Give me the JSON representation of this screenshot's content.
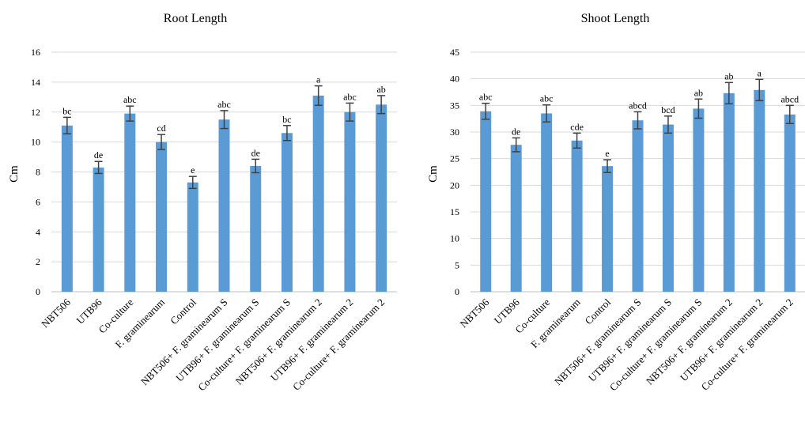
{
  "chart_data": [
    {
      "type": "bar",
      "title": "Root Length",
      "ylabel": "Cm",
      "xlabel": "",
      "ylim": [
        0,
        16
      ],
      "yticks": [
        0,
        2,
        4,
        6,
        8,
        10,
        12,
        14,
        16
      ],
      "grid": true,
      "categories": [
        "NBT506",
        "UTB96",
        "Co-culture",
        "F. graminearum",
        "Control",
        "NBT506+ F. graminearum S",
        "UTB96+ F. graminearum S",
        "Co-culture+ F. graminearum S",
        "NBT506+ F. graminearum 2",
        "UTB96+ F. graminearum 2",
        "Co-culture+ F. graminearum 2"
      ],
      "values": [
        11.1,
        8.3,
        11.9,
        10.0,
        7.3,
        11.5,
        8.4,
        10.6,
        13.1,
        12.0,
        12.5
      ],
      "errors": [
        0.55,
        0.4,
        0.5,
        0.5,
        0.4,
        0.6,
        0.45,
        0.5,
        0.65,
        0.6,
        0.6
      ],
      "significance": [
        "bc",
        "de",
        "abc",
        "cd",
        "e",
        "abc",
        "de",
        "bc",
        "a",
        "abc",
        "ab"
      ],
      "color": "#5b9bd5"
    },
    {
      "type": "bar",
      "title": "Shoot Length",
      "ylabel": "Cm",
      "xlabel": "",
      "ylim": [
        0,
        45
      ],
      "yticks": [
        0,
        5,
        10,
        15,
        20,
        25,
        30,
        35,
        40,
        45
      ],
      "grid": true,
      "categories": [
        "NBT506",
        "UTB96",
        "Co-culture",
        "F. graminearum",
        "Control",
        "NBT506+ F. graminearum S",
        "UTB96+ F. graminearum S",
        "Co-culture+ F. graminearum S",
        "NBT506+ F. graminearum 2",
        "UTB96+ F. graminearum 2",
        "Co-culture+ F. graminearum 2"
      ],
      "values": [
        33.9,
        27.6,
        33.5,
        28.4,
        23.6,
        32.2,
        31.4,
        34.4,
        37.3,
        37.9,
        33.3
      ],
      "errors": [
        1.5,
        1.3,
        1.6,
        1.4,
        1.2,
        1.6,
        1.6,
        1.8,
        2.0,
        2.0,
        1.7
      ],
      "significance": [
        "abc",
        "de",
        "abc",
        "cde",
        "e",
        "abcd",
        "bcd",
        "ab",
        "ab",
        "a",
        "abcd"
      ],
      "color": "#5b9bd5"
    }
  ]
}
